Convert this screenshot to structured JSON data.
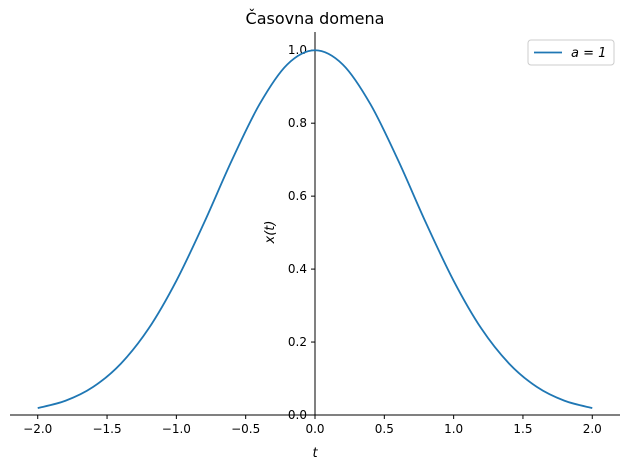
{
  "chart_data": {
    "type": "line",
    "title": "Časovna domena",
    "xlabel": "t",
    "ylabel": "x(t)",
    "xlim": [
      -2.2,
      2.2
    ],
    "ylim": [
      0.0,
      1.05
    ],
    "xticks": [
      -2.0,
      -1.5,
      -1.0,
      -0.5,
      0.0,
      0.5,
      1.0,
      1.5,
      2.0
    ],
    "xtick_labels": [
      "−2.0",
      "−1.5",
      "−1.0",
      "−0.5",
      "0.0",
      "0.5",
      "1.0",
      "1.5",
      "2.0"
    ],
    "yticks": [
      0.0,
      0.2,
      0.4,
      0.6,
      0.8,
      1.0
    ],
    "ytick_labels": [
      "0.0",
      "0.2",
      "0.4",
      "0.6",
      "0.8",
      "1.0"
    ],
    "grid": false,
    "spines": "centered",
    "legend": {
      "placement": "top-right",
      "entries": [
        "a = 1"
      ]
    },
    "series": [
      {
        "name": "a = 1",
        "color": "#1f77b4",
        "x": [
          -2.0,
          -1.8,
          -1.6,
          -1.4,
          -1.2,
          -1.0,
          -0.8,
          -0.6,
          -0.4,
          -0.2,
          0.0,
          0.2,
          0.4,
          0.6,
          0.8,
          1.0,
          1.2,
          1.4,
          1.6,
          1.8,
          2.0
        ],
        "y": [
          0.019,
          0.039,
          0.077,
          0.141,
          0.237,
          0.368,
          0.527,
          0.698,
          0.852,
          0.961,
          1.0,
          0.961,
          0.852,
          0.698,
          0.527,
          0.368,
          0.237,
          0.141,
          0.077,
          0.039,
          0.019
        ]
      }
    ]
  }
}
